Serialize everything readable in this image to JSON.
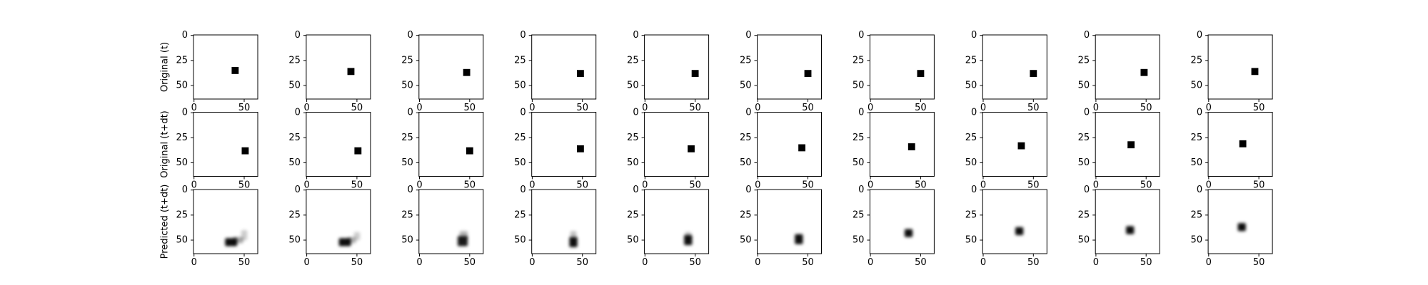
{
  "chart_data": {
    "type": "image-grid",
    "title": "",
    "rows": [
      {
        "label": "Original (t)"
      },
      {
        "label": "Original (t+dt)"
      },
      {
        "label": "Predicted (t+dt)"
      }
    ],
    "columns": 10,
    "image_size": [
      64,
      64
    ],
    "x_ticks": [
      0,
      50
    ],
    "y_ticks": [
      0,
      25,
      50
    ],
    "colormap": "gray_r",
    "panels": [
      [
        {
          "type": "square",
          "x": 41,
          "y": 35,
          "size": 7
        },
        {
          "type": "square",
          "x": 44,
          "y": 36,
          "size": 7
        },
        {
          "type": "square",
          "x": 47,
          "y": 37,
          "size": 7
        },
        {
          "type": "square",
          "x": 48,
          "y": 38,
          "size": 7
        },
        {
          "type": "square",
          "x": 50,
          "y": 38,
          "size": 7
        },
        {
          "type": "square",
          "x": 50,
          "y": 38,
          "size": 7
        },
        {
          "type": "square",
          "x": 50,
          "y": 38,
          "size": 7
        },
        {
          "type": "square",
          "x": 50,
          "y": 38,
          "size": 7
        },
        {
          "type": "square",
          "x": 48,
          "y": 37,
          "size": 7
        },
        {
          "type": "square",
          "x": 46,
          "y": 36,
          "size": 7
        }
      ],
      [
        {
          "type": "square",
          "x": 51,
          "y": 38,
          "size": 7
        },
        {
          "type": "square",
          "x": 51,
          "y": 38,
          "size": 7
        },
        {
          "type": "square",
          "x": 50,
          "y": 38,
          "size": 7
        },
        {
          "type": "square",
          "x": 48,
          "y": 36,
          "size": 7
        },
        {
          "type": "square",
          "x": 46,
          "y": 36,
          "size": 7
        },
        {
          "type": "square",
          "x": 44,
          "y": 35,
          "size": 7
        },
        {
          "type": "square",
          "x": 41,
          "y": 34,
          "size": 7
        },
        {
          "type": "square",
          "x": 38,
          "y": 33,
          "size": 7
        },
        {
          "type": "square",
          "x": 35,
          "y": 32,
          "size": 7
        },
        {
          "type": "square",
          "x": 34,
          "y": 31,
          "size": 7
        }
      ],
      [
        {
          "type": "blur",
          "blobs": [
            {
              "x": 37,
              "y": 52,
              "rx": 6,
              "ry": 4,
              "o": 0.95
            },
            {
              "x": 44,
              "y": 50,
              "rx": 5,
              "ry": 3,
              "o": 0.35
            },
            {
              "x": 50,
              "y": 45,
              "rx": 3,
              "ry": 5,
              "o": 0.2
            }
          ]
        },
        {
          "type": "blur",
          "blobs": [
            {
              "x": 38,
              "y": 52,
              "rx": 6,
              "ry": 4,
              "o": 0.95
            },
            {
              "x": 45,
              "y": 50,
              "rx": 4,
              "ry": 3,
              "o": 0.3
            },
            {
              "x": 50,
              "y": 46,
              "rx": 3,
              "ry": 4,
              "o": 0.2
            }
          ]
        },
        {
          "type": "blur",
          "blobs": [
            {
              "x": 43,
              "y": 51,
              "rx": 5,
              "ry": 5,
              "o": 0.9
            },
            {
              "x": 44,
              "y": 45,
              "rx": 4,
              "ry": 4,
              "o": 0.3
            }
          ]
        },
        {
          "type": "blur",
          "blobs": [
            {
              "x": 41,
              "y": 52,
              "rx": 4,
              "ry": 5,
              "o": 0.95
            },
            {
              "x": 41,
              "y": 45,
              "rx": 3,
              "ry": 4,
              "o": 0.25
            }
          ]
        },
        {
          "type": "blur",
          "blobs": [
            {
              "x": 43,
              "y": 50,
              "rx": 4,
              "ry": 5,
              "o": 0.95
            },
            {
              "x": 43,
              "y": 45,
              "rx": 3,
              "ry": 3,
              "o": 0.25
            }
          ]
        },
        {
          "type": "blur",
          "blobs": [
            {
              "x": 41,
              "y": 49,
              "rx": 4,
              "ry": 5,
              "o": 0.95
            }
          ]
        },
        {
          "type": "blur",
          "blobs": [
            {
              "x": 38,
              "y": 43,
              "rx": 4,
              "ry": 4,
              "o": 0.95
            }
          ]
        },
        {
          "type": "blur",
          "blobs": [
            {
              "x": 36,
              "y": 41,
              "rx": 4,
              "ry": 4,
              "o": 0.95
            }
          ]
        },
        {
          "type": "blur",
          "blobs": [
            {
              "x": 34,
              "y": 40,
              "rx": 4,
              "ry": 4,
              "o": 0.95
            }
          ]
        },
        {
          "type": "blur",
          "blobs": [
            {
              "x": 33,
              "y": 37,
              "rx": 4,
              "ry": 4,
              "o": 0.95
            }
          ]
        }
      ]
    ]
  }
}
